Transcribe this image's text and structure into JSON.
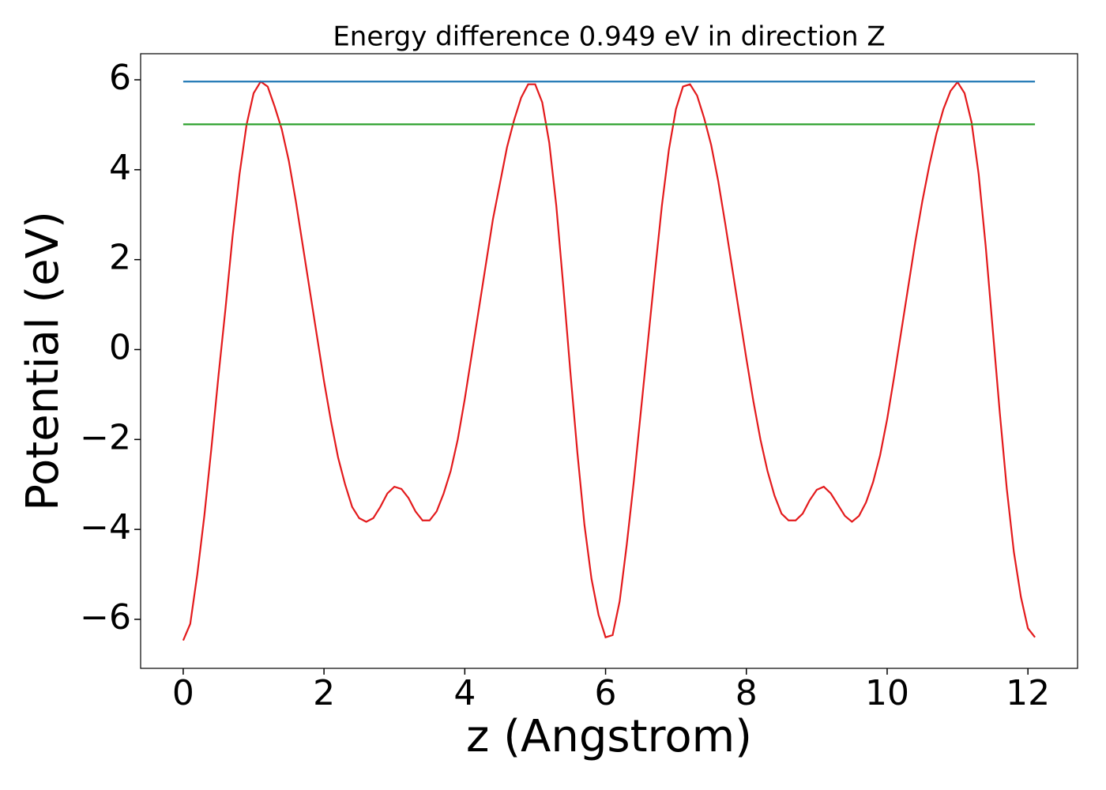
{
  "chart_data": {
    "type": "line",
    "title": "Energy difference 0.949 eV in direction Z",
    "xlabel": "z (Angstrom)",
    "ylabel": "Potential (eV)",
    "xlim": [
      -0.605,
      12.705
    ],
    "ylim": [
      -7.09,
      6.58
    ],
    "xticks": [
      0,
      2,
      4,
      6,
      8,
      10,
      12
    ],
    "yticks": [
      {
        "value": -6,
        "label": "−6"
      },
      {
        "value": -4,
        "label": "−4"
      },
      {
        "value": -2,
        "label": "−2"
      },
      0,
      2,
      4,
      6
    ],
    "series": [
      {
        "color": "#e31a1c",
        "x": [
          0,
          0.1,
          0.2,
          0.3,
          0.4,
          0.5,
          0.6,
          0.7,
          0.8,
          0.9,
          1.0,
          1.1,
          1.2,
          1.3,
          1.4,
          1.5,
          1.6,
          1.7,
          1.8,
          1.9,
          2.0,
          2.1,
          2.2,
          2.3,
          2.4,
          2.5,
          2.6,
          2.7,
          2.8,
          2.9,
          3.0,
          3.1,
          3.2,
          3.3,
          3.4,
          3.5,
          3.6,
          3.7,
          3.8,
          3.9,
          4.0,
          4.1,
          4.2,
          4.3,
          4.4,
          4.5,
          4.6,
          4.7,
          4.8,
          4.9,
          5.0,
          5.1,
          5.2,
          5.3,
          5.4,
          5.5,
          5.6,
          5.7,
          5.8,
          5.9,
          6.0,
          6.1,
          6.2,
          6.3,
          6.4,
          6.5,
          6.6,
          6.7,
          6.8,
          6.9,
          7.0,
          7.1,
          7.2,
          7.3,
          7.4,
          7.5,
          7.6,
          7.7,
          7.8,
          7.9,
          8.0,
          8.1,
          8.2,
          8.3,
          8.4,
          8.5,
          8.6,
          8.7,
          8.8,
          8.9,
          9.0,
          9.1,
          9.2,
          9.3,
          9.4,
          9.5,
          9.6,
          9.7,
          9.8,
          9.9,
          10.0,
          10.1,
          10.2,
          10.3,
          10.4,
          10.5,
          10.6,
          10.7,
          10.8,
          10.9,
          11.0,
          11.1,
          11.2,
          11.3,
          11.4,
          11.5,
          11.6,
          11.7,
          11.8,
          11.9,
          12.0,
          12.1
        ],
        "values": [
          -6.47,
          -6.1,
          -5.0,
          -3.7,
          -2.2,
          -0.6,
          0.9,
          2.5,
          3.9,
          5.0,
          5.7,
          5.96,
          5.85,
          5.4,
          4.9,
          4.2,
          3.3,
          2.3,
          1.3,
          0.3,
          -0.7,
          -1.6,
          -2.4,
          -3.0,
          -3.5,
          -3.75,
          -3.83,
          -3.75,
          -3.5,
          -3.2,
          -3.05,
          -3.1,
          -3.3,
          -3.6,
          -3.8,
          -3.8,
          -3.6,
          -3.2,
          -2.7,
          -2.0,
          -1.1,
          -0.1,
          0.9,
          1.9,
          2.9,
          3.7,
          4.5,
          5.1,
          5.6,
          5.9,
          5.9,
          5.5,
          4.6,
          3.2,
          1.4,
          -0.5,
          -2.3,
          -3.9,
          -5.1,
          -5.9,
          -6.4,
          -6.35,
          -5.6,
          -4.35,
          -2.95,
          -1.4,
          0.15,
          1.7,
          3.2,
          4.45,
          5.35,
          5.85,
          5.9,
          5.65,
          5.15,
          4.55,
          3.75,
          2.8,
          1.8,
          0.8,
          -0.2,
          -1.15,
          -2.0,
          -2.7,
          -3.25,
          -3.65,
          -3.8,
          -3.8,
          -3.65,
          -3.35,
          -3.12,
          -3.05,
          -3.2,
          -3.45,
          -3.7,
          -3.83,
          -3.7,
          -3.4,
          -2.95,
          -2.35,
          -1.55,
          -0.6,
          0.4,
          1.4,
          2.4,
          3.3,
          4.1,
          4.8,
          5.35,
          5.75,
          5.95,
          5.7,
          5.05,
          3.9,
          2.3,
          0.45,
          -1.4,
          -3.1,
          -4.5,
          -5.5,
          -6.2,
          -6.4
        ]
      },
      {
        "color": "#1f77b4",
        "x": [
          0,
          12.1
        ],
        "values": [
          5.96,
          5.96
        ]
      },
      {
        "color": "#2ca02c",
        "x": [
          0,
          12.1
        ],
        "values": [
          5.01,
          5.01
        ]
      }
    ]
  }
}
